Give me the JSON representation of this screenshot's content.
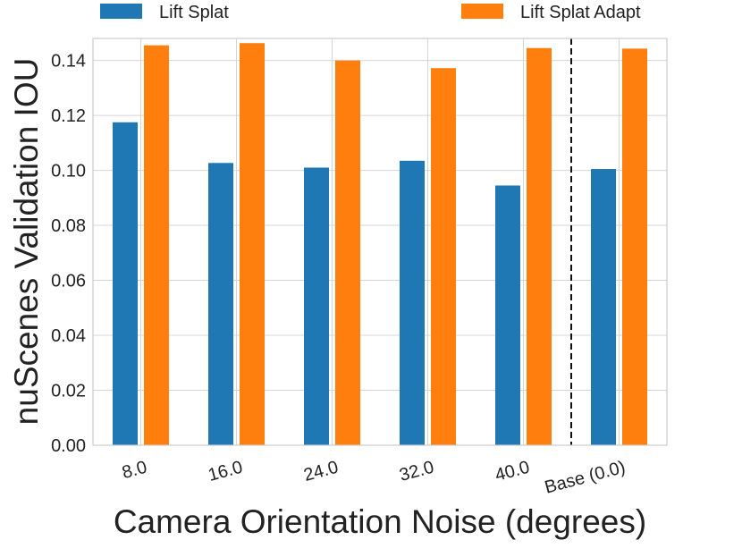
{
  "chart_data": {
    "type": "bar",
    "title": "",
    "xlabel": "Camera Orientation Noise (degrees)",
    "ylabel": "nuScenes Validation IOU",
    "categories": [
      "8.0",
      "16.0",
      "24.0",
      "32.0",
      "40.0",
      "Base (0.0)"
    ],
    "series": [
      {
        "name": "Lift Splat",
        "color": "#1f77b4",
        "values": [
          0.1175,
          0.1027,
          0.101,
          0.1035,
          0.0945,
          0.1005
        ]
      },
      {
        "name": "Lift Splat Adapt",
        "color": "#ff7f0e",
        "values": [
          0.1455,
          0.1463,
          0.14,
          0.1372,
          0.1445,
          0.1443
        ]
      }
    ],
    "ylim": [
      0,
      0.148
    ],
    "yticks": [
      "0.00",
      "0.02",
      "0.04",
      "0.06",
      "0.08",
      "0.10",
      "0.12",
      "0.14"
    ],
    "grid": true,
    "legend_position": "top",
    "separator": {
      "style": "dashed",
      "between": [
        "40.0",
        "Base (0.0)"
      ]
    }
  }
}
